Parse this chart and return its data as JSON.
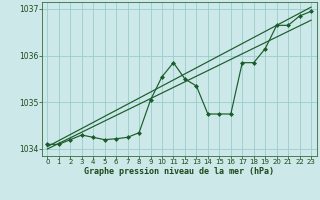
{
  "xlabel": "Graphe pression niveau de la mer (hPa)",
  "background_color": "#cce8e8",
  "plot_background": "#cce8e8",
  "line_color": "#1a5c2a",
  "grid_color": "#99cccc",
  "tick_label_color": "#1a4a1a",
  "x_data": [
    0,
    1,
    2,
    3,
    4,
    5,
    6,
    7,
    8,
    9,
    10,
    11,
    12,
    13,
    14,
    15,
    16,
    17,
    18,
    19,
    20,
    21,
    22,
    23
  ],
  "y_main": [
    1034.1,
    1034.1,
    1034.2,
    1034.3,
    1034.25,
    1034.2,
    1034.22,
    1034.25,
    1034.35,
    1035.05,
    1035.55,
    1035.85,
    1035.5,
    1035.35,
    1034.75,
    1034.75,
    1034.75,
    1035.85,
    1035.85,
    1036.15,
    1036.65,
    1036.65,
    1036.85,
    1036.95
  ],
  "y_reg1": [
    1034.05,
    1034.18,
    1034.31,
    1034.44,
    1034.57,
    1034.7,
    1034.83,
    1034.96,
    1035.09,
    1035.22,
    1035.35,
    1035.48,
    1035.61,
    1035.74,
    1035.87,
    1036.0,
    1036.13,
    1036.26,
    1036.39,
    1036.52,
    1036.65,
    1036.78,
    1036.91,
    1037.04
  ],
  "y_reg2": [
    1034.0,
    1034.12,
    1034.24,
    1034.36,
    1034.48,
    1034.6,
    1034.72,
    1034.84,
    1034.96,
    1035.08,
    1035.2,
    1035.32,
    1035.44,
    1035.56,
    1035.68,
    1035.8,
    1035.92,
    1036.04,
    1036.16,
    1036.28,
    1036.4,
    1036.52,
    1036.64,
    1036.76
  ],
  "ylim": [
    1033.85,
    1037.15
  ],
  "yticks": [
    1034,
    1035,
    1036,
    1037
  ],
  "xticks": [
    0,
    1,
    2,
    3,
    4,
    5,
    6,
    7,
    8,
    9,
    10,
    11,
    12,
    13,
    14,
    15,
    16,
    17,
    18,
    19,
    20,
    21,
    22,
    23
  ]
}
